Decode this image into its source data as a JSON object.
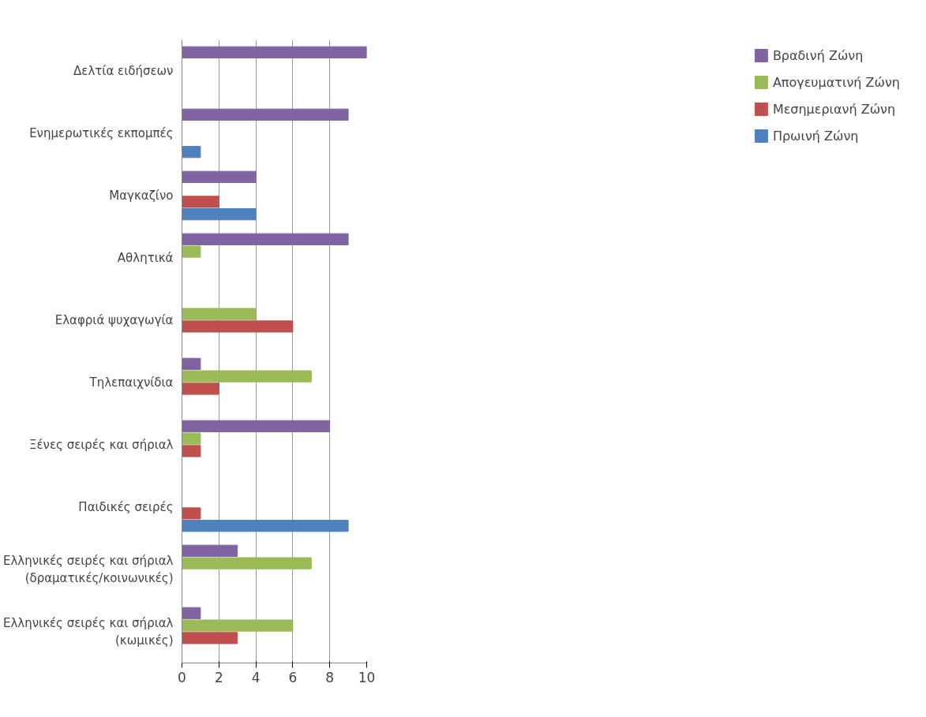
{
  "chart_data": {
    "type": "bar",
    "orientation": "horizontal",
    "categories": [
      "Δελτία ειδήσεων",
      "Ενημερωτικές εκπομπές",
      "Μαγκαζίνο",
      "Αθλητικά",
      "Ελαφριά ψυχαγωγία",
      "Τηλεπαιχνίδια",
      "Ξένες σειρές και σήριαλ",
      "Παιδικές σειρές",
      "Ελληνικές σειρές και σήριαλ\n(δραματικές/κοινωνικές)",
      "Ελληνικές σειρές και σήριαλ\n(κωμικές)"
    ],
    "series": [
      {
        "name": "Πρωινή Ζώνη",
        "color": "#4f81bd",
        "values": [
          0,
          1,
          4,
          0,
          0,
          0,
          0,
          9,
          0,
          0
        ]
      },
      {
        "name": "Μεσημεριανή Ζώνη",
        "color": "#c0504d",
        "values": [
          0,
          0,
          2,
          0,
          6,
          2,
          1,
          1,
          0,
          3
        ]
      },
      {
        "name": "Απογευματινή Ζώνη",
        "color": "#9bbb59",
        "values": [
          0,
          0,
          0,
          1,
          4,
          7,
          1,
          0,
          7,
          6
        ]
      },
      {
        "name": "Βραδινή Ζώνη",
        "color": "#8064a2",
        "values": [
          10,
          9,
          4,
          9,
          0,
          1,
          8,
          0,
          3,
          1
        ]
      }
    ],
    "xlim": [
      0,
      10
    ],
    "xticks": [
      0,
      2,
      4,
      6,
      8,
      10
    ],
    "grid": "x",
    "legend": "right"
  }
}
